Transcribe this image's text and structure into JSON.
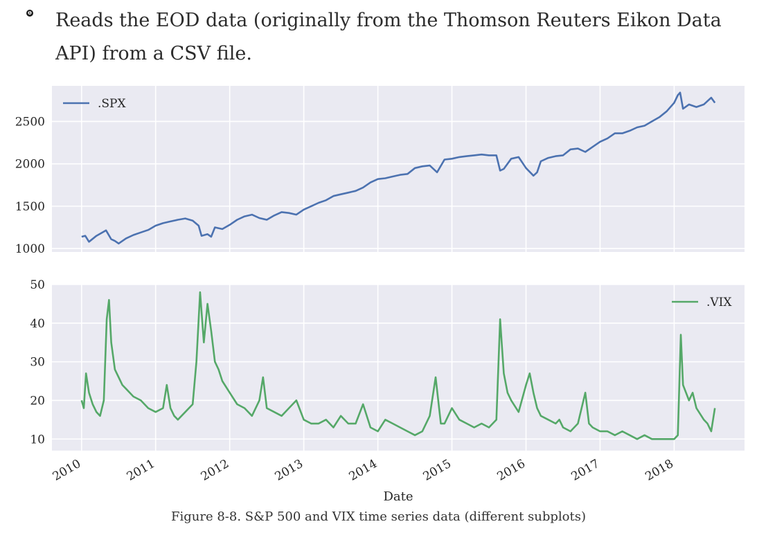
{
  "page": {
    "bullet_marker": "❶",
    "lead_text": "Reads the EOD data (originally from the Thomson Reuters Eikon Data API) from a CSV file.",
    "caption": "Figure 8-8. S&P 500 and VIX time series data (different subplots)"
  },
  "colors": {
    "panel_bg": "#eaeaf2",
    "grid": "#ffffff",
    "spx": "#4c72b0",
    "vix": "#55a868"
  },
  "chart_data": [
    {
      "type": "line",
      "title": "",
      "xlabel": "",
      "ylabel": "",
      "xlim": [
        2009.6,
        2018.95
      ],
      "ylim": [
        960,
        2920
      ],
      "yticks": [
        1000,
        1500,
        2000,
        2500
      ],
      "xticks": [
        2010,
        2011,
        2012,
        2013,
        2014,
        2015,
        2016,
        2017,
        2018
      ],
      "grid": true,
      "legend": "top-left",
      "series": [
        {
          "name": ".SPX",
          "color": "#4c72b0",
          "x": [
            2010.0,
            2010.05,
            2010.1,
            2010.2,
            2010.3,
            2010.33,
            2010.4,
            2010.45,
            2010.5,
            2010.6,
            2010.7,
            2010.8,
            2010.9,
            2011.0,
            2011.1,
            2011.2,
            2011.3,
            2011.4,
            2011.5,
            2011.58,
            2011.62,
            2011.7,
            2011.75,
            2011.8,
            2011.9,
            2012.0,
            2012.1,
            2012.2,
            2012.3,
            2012.4,
            2012.5,
            2012.6,
            2012.7,
            2012.8,
            2012.9,
            2013.0,
            2013.1,
            2013.2,
            2013.3,
            2013.4,
            2013.5,
            2013.6,
            2013.7,
            2013.8,
            2013.9,
            2014.0,
            2014.1,
            2014.2,
            2014.3,
            2014.4,
            2014.5,
            2014.6,
            2014.7,
            2014.8,
            2014.9,
            2015.0,
            2015.1,
            2015.2,
            2015.3,
            2015.4,
            2015.5,
            2015.6,
            2015.65,
            2015.7,
            2015.8,
            2015.9,
            2016.0,
            2016.1,
            2016.15,
            2016.2,
            2016.3,
            2016.4,
            2016.5,
            2016.6,
            2016.7,
            2016.8,
            2016.9,
            2017.0,
            2017.1,
            2017.2,
            2017.3,
            2017.4,
            2017.5,
            2017.6,
            2017.7,
            2017.8,
            2017.9,
            2018.0,
            2018.05,
            2018.08,
            2018.12,
            2018.2,
            2018.3,
            2018.4,
            2018.5,
            2018.55
          ],
          "values": [
            1140,
            1150,
            1080,
            1150,
            1200,
            1215,
            1110,
            1090,
            1060,
            1120,
            1160,
            1190,
            1220,
            1270,
            1300,
            1320,
            1340,
            1355,
            1330,
            1270,
            1150,
            1170,
            1140,
            1250,
            1230,
            1280,
            1340,
            1380,
            1400,
            1360,
            1340,
            1390,
            1430,
            1420,
            1400,
            1460,
            1500,
            1540,
            1570,
            1620,
            1640,
            1660,
            1680,
            1720,
            1780,
            1820,
            1830,
            1850,
            1870,
            1880,
            1950,
            1970,
            1980,
            1900,
            2050,
            2060,
            2080,
            2090,
            2100,
            2110,
            2100,
            2100,
            1920,
            1940,
            2060,
            2080,
            1950,
            1860,
            1900,
            2030,
            2070,
            2090,
            2100,
            2170,
            2180,
            2140,
            2200,
            2260,
            2300,
            2360,
            2360,
            2390,
            2430,
            2450,
            2500,
            2550,
            2620,
            2720,
            2810,
            2840,
            2650,
            2700,
            2670,
            2700,
            2780,
            2720
          ]
        }
      ]
    },
    {
      "type": "line",
      "title": "",
      "xlabel": "Date",
      "ylabel": "",
      "xlim": [
        2009.6,
        2018.95
      ],
      "ylim": [
        7,
        50
      ],
      "yticks": [
        10,
        20,
        30,
        40,
        50
      ],
      "xticks": [
        2010,
        2011,
        2012,
        2013,
        2014,
        2015,
        2016,
        2017,
        2018
      ],
      "xtick_labels": [
        "2010",
        "2011",
        "2012",
        "2013",
        "2014",
        "2015",
        "2016",
        "2017",
        "2018"
      ],
      "grid": true,
      "legend": "top-right",
      "series": [
        {
          "name": ".VIX",
          "color": "#55a868",
          "x": [
            2010.0,
            2010.03,
            2010.06,
            2010.1,
            2010.15,
            2010.2,
            2010.25,
            2010.3,
            2010.34,
            2010.37,
            2010.4,
            2010.45,
            2010.5,
            2010.55,
            2010.6,
            2010.7,
            2010.8,
            2010.9,
            2011.0,
            2011.1,
            2011.15,
            2011.2,
            2011.25,
            2011.3,
            2011.4,
            2011.5,
            2011.55,
            2011.6,
            2011.65,
            2011.7,
            2011.75,
            2011.8,
            2011.85,
            2011.9,
            2012.0,
            2012.1,
            2012.2,
            2012.3,
            2012.4,
            2012.45,
            2012.5,
            2012.6,
            2012.7,
            2012.8,
            2012.9,
            2013.0,
            2013.1,
            2013.2,
            2013.3,
            2013.4,
            2013.5,
            2013.6,
            2013.7,
            2013.8,
            2013.9,
            2014.0,
            2014.1,
            2014.2,
            2014.3,
            2014.4,
            2014.5,
            2014.6,
            2014.7,
            2014.78,
            2014.85,
            2014.9,
            2015.0,
            2015.1,
            2015.2,
            2015.3,
            2015.4,
            2015.5,
            2015.6,
            2015.65,
            2015.7,
            2015.75,
            2015.8,
            2015.9,
            2016.0,
            2016.05,
            2016.1,
            2016.15,
            2016.2,
            2016.3,
            2016.4,
            2016.45,
            2016.5,
            2016.6,
            2016.7,
            2016.8,
            2016.85,
            2016.9,
            2017.0,
            2017.1,
            2017.2,
            2017.3,
            2017.4,
            2017.5,
            2017.6,
            2017.7,
            2017.8,
            2017.9,
            2018.0,
            2018.05,
            2018.09,
            2018.12,
            2018.2,
            2018.25,
            2018.3,
            2018.4,
            2018.45,
            2018.5,
            2018.55
          ],
          "values": [
            20,
            18,
            27,
            22,
            19,
            17,
            16,
            20,
            41,
            46,
            35,
            28,
            26,
            24,
            23,
            21,
            20,
            18,
            17,
            18,
            24,
            18,
            16,
            15,
            17,
            19,
            30,
            48,
            35,
            45,
            38,
            30,
            28,
            25,
            22,
            19,
            18,
            16,
            20,
            26,
            18,
            17,
            16,
            18,
            20,
            15,
            14,
            14,
            15,
            13,
            16,
            14,
            14,
            19,
            13,
            12,
            15,
            14,
            13,
            12,
            11,
            12,
            16,
            26,
            14,
            14,
            18,
            15,
            14,
            13,
            14,
            13,
            15,
            41,
            27,
            22,
            20,
            17,
            24,
            27,
            22,
            18,
            16,
            15,
            14,
            15,
            13,
            12,
            14,
            22,
            14,
            13,
            12,
            12,
            11,
            12,
            11,
            10,
            11,
            10,
            10,
            10,
            10,
            11,
            37,
            24,
            20,
            22,
            18,
            15,
            14,
            12,
            18
          ]
        }
      ]
    }
  ]
}
